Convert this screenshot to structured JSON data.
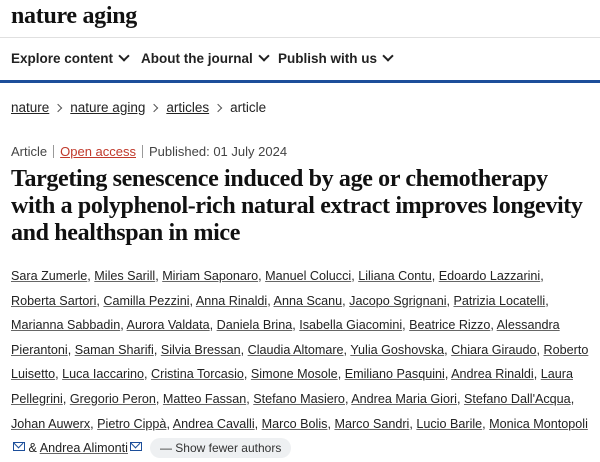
{
  "site": {
    "brand": "nature aging"
  },
  "nav": {
    "items": [
      "Explore content",
      "About the journal",
      "Publish with us"
    ]
  },
  "breadcrumb": {
    "items": [
      "nature",
      "nature aging",
      "articles",
      "article"
    ]
  },
  "meta": {
    "type": "Article",
    "access": "Open access",
    "published": "Published: 01 July 2024"
  },
  "article": {
    "title": "Targeting senescence induced by age or chemotherapy with a polyphenol-rich natural extract improves longevity and healthspan in mice"
  },
  "authors": {
    "names": [
      "Sara Zumerle",
      "Miles Sarill",
      "Miriam Saponaro",
      "Manuel Colucci",
      "Liliana Contu",
      "Edoardo Lazzarini",
      "Roberta Sartori",
      "Camilla Pezzini",
      "Anna Rinaldi",
      "Anna Scanu",
      "Jacopo Sgrignani",
      "Patrizia Locatelli",
      "Marianna Sabbadin",
      "Aurora Valdata",
      "Daniela Brina",
      "Isabella Giacomini",
      "Beatrice Rizzo",
      "Alessandra Pierantoni",
      "Saman Sharifi",
      "Silvia Bressan",
      "Claudia Altomare",
      "Yulia Goshovska",
      "Chiara Giraudo",
      "Roberto Luisetto",
      "Luca Iaccarino",
      "Cristina Torcasio",
      "Simone Mosole",
      "Emiliano Pasquini",
      "Andrea Rinaldi",
      "Laura Pellegrini",
      "Gregorio Peron",
      "Matteo Fassan",
      "Stefano Masiero",
      "Andrea Maria Giori",
      "Stefano Dall'Acqua",
      "Johan Auwerx",
      "Pietro Cippà",
      "Andrea Cavalli",
      "Marco Bolis",
      "Marco Sandri",
      "Lucio Barile",
      "Monica Montopoli",
      "Andrea Alimonti"
    ],
    "ampersand": "&",
    "toggle_label": "— Show fewer authors"
  }
}
